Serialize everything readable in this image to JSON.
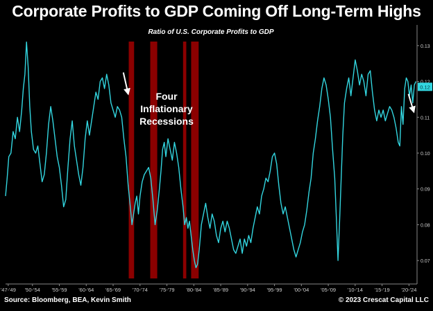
{
  "title": "Corporate Profits to GDP Coming Off Long-Term Highs",
  "footer": {
    "source": "Source: Bloomberg, BEA, Kevin Smith",
    "copyright": "© 2023 Crescat Capital LLC"
  },
  "colors": {
    "background": "#000000",
    "line": "#33d6e0",
    "recession_band": "#8b0000",
    "last_value_tag": "#33d6e0",
    "arrow": "#ffffff"
  },
  "chart_data": {
    "type": "line",
    "subtitle": "Ratio of U.S. Corporate Profits to GDP",
    "annotation": [
      "Four",
      "Inflationary",
      "Recessions"
    ],
    "last_value_label": "0.12",
    "y_ticks": [
      "0.07",
      "0.08",
      "0.09",
      "0.10",
      "0.11",
      "0.12",
      "0.13"
    ],
    "ylim": [
      0.065,
      0.135
    ],
    "x_range": [
      1947,
      2023.5
    ],
    "x_ticks": [
      {
        "label": "'47-'49",
        "year": 1947.5
      },
      {
        "label": "'50-'54",
        "year": 1952
      },
      {
        "label": "'55-'59",
        "year": 1957
      },
      {
        "label": "'60-'64",
        "year": 1962
      },
      {
        "label": "'65-'69",
        "year": 1967
      },
      {
        "label": "'70-'74",
        "year": 1972
      },
      {
        "label": "'75-'79",
        "year": 1977
      },
      {
        "label": "'80-'84",
        "year": 1982
      },
      {
        "label": "'85-'89",
        "year": 1987
      },
      {
        "label": "'90-'94",
        "year": 1992
      },
      {
        "label": "'95-'99",
        "year": 1997
      },
      {
        "label": "'00-'04",
        "year": 2002
      },
      {
        "label": "'05-'09",
        "year": 2007
      },
      {
        "label": "'10-'14",
        "year": 2012
      },
      {
        "label": "'15-'19",
        "year": 2017
      },
      {
        "label": "'20-'24",
        "year": 2022
      }
    ],
    "recessions": [
      {
        "start": 1969.9,
        "end": 1970.9
      },
      {
        "start": 1973.9,
        "end": 1975.2
      },
      {
        "start": 1980.0,
        "end": 1980.6
      },
      {
        "start": 1981.5,
        "end": 1982.9
      }
    ],
    "arrows": [
      {
        "from": [
          1968.9,
          0.1225
        ],
        "to": [
          1969.8,
          0.1165
        ]
      },
      {
        "from": [
          2021.9,
          0.1165
        ],
        "to": [
          2022.9,
          0.1115
        ]
      }
    ],
    "series": [
      {
        "values": [
          [
            1947.0,
            0.088
          ],
          [
            1947.3,
            0.093
          ],
          [
            1947.6,
            0.099
          ],
          [
            1948.0,
            0.1
          ],
          [
            1948.4,
            0.106
          ],
          [
            1948.8,
            0.104
          ],
          [
            1949.2,
            0.11
          ],
          [
            1949.6,
            0.106
          ],
          [
            1950.0,
            0.112
          ],
          [
            1950.3,
            0.118
          ],
          [
            1950.6,
            0.122
          ],
          [
            1950.9,
            0.131
          ],
          [
            1951.2,
            0.124
          ],
          [
            1951.5,
            0.113
          ],
          [
            1951.8,
            0.106
          ],
          [
            1952.2,
            0.101
          ],
          [
            1952.6,
            0.1
          ],
          [
            1953.0,
            0.102
          ],
          [
            1953.4,
            0.097
          ],
          [
            1953.8,
            0.092
          ],
          [
            1954.2,
            0.094
          ],
          [
            1954.6,
            0.1
          ],
          [
            1955.0,
            0.108
          ],
          [
            1955.4,
            0.113
          ],
          [
            1955.8,
            0.109
          ],
          [
            1956.2,
            0.104
          ],
          [
            1956.6,
            0.099
          ],
          [
            1957.0,
            0.096
          ],
          [
            1957.4,
            0.091
          ],
          [
            1957.8,
            0.085
          ],
          [
            1958.2,
            0.087
          ],
          [
            1958.6,
            0.096
          ],
          [
            1959.0,
            0.104
          ],
          [
            1959.4,
            0.109
          ],
          [
            1959.8,
            0.102
          ],
          [
            1960.2,
            0.098
          ],
          [
            1960.6,
            0.094
          ],
          [
            1961.0,
            0.091
          ],
          [
            1961.4,
            0.096
          ],
          [
            1961.8,
            0.104
          ],
          [
            1962.2,
            0.109
          ],
          [
            1962.6,
            0.105
          ],
          [
            1963.0,
            0.109
          ],
          [
            1963.4,
            0.113
          ],
          [
            1963.8,
            0.117
          ],
          [
            1964.2,
            0.115
          ],
          [
            1964.6,
            0.12
          ],
          [
            1965.0,
            0.121
          ],
          [
            1965.4,
            0.118
          ],
          [
            1965.8,
            0.122
          ],
          [
            1966.2,
            0.119
          ],
          [
            1966.6,
            0.114
          ],
          [
            1967.0,
            0.112
          ],
          [
            1967.4,
            0.11
          ],
          [
            1967.8,
            0.113
          ],
          [
            1968.2,
            0.112
          ],
          [
            1968.6,
            0.11
          ],
          [
            1969.0,
            0.104
          ],
          [
            1969.4,
            0.099
          ],
          [
            1969.8,
            0.091
          ],
          [
            1970.2,
            0.085
          ],
          [
            1970.5,
            0.08
          ],
          [
            1970.8,
            0.083
          ],
          [
            1971.1,
            0.086
          ],
          [
            1971.4,
            0.088
          ],
          [
            1971.7,
            0.083
          ],
          [
            1972.0,
            0.088
          ],
          [
            1972.4,
            0.092
          ],
          [
            1972.8,
            0.094
          ],
          [
            1973.2,
            0.095
          ],
          [
            1973.6,
            0.096
          ],
          [
            1974.0,
            0.093
          ],
          [
            1974.4,
            0.087
          ],
          [
            1974.8,
            0.08
          ],
          [
            1975.2,
            0.084
          ],
          [
            1975.6,
            0.09
          ],
          [
            1975.9,
            0.095
          ],
          [
            1976.2,
            0.101
          ],
          [
            1976.5,
            0.103
          ],
          [
            1976.8,
            0.099
          ],
          [
            1977.2,
            0.104
          ],
          [
            1977.6,
            0.101
          ],
          [
            1978.0,
            0.098
          ],
          [
            1978.4,
            0.103
          ],
          [
            1978.8,
            0.1
          ],
          [
            1979.2,
            0.096
          ],
          [
            1979.6,
            0.09
          ],
          [
            1980.0,
            0.085
          ],
          [
            1980.3,
            0.08
          ],
          [
            1980.6,
            0.082
          ],
          [
            1980.9,
            0.079
          ],
          [
            1981.2,
            0.081
          ],
          [
            1981.5,
            0.077
          ],
          [
            1981.8,
            0.073
          ],
          [
            1982.1,
            0.07
          ],
          [
            1982.4,
            0.068
          ],
          [
            1982.7,
            0.069
          ],
          [
            1983.0,
            0.073
          ],
          [
            1983.4,
            0.08
          ],
          [
            1983.8,
            0.083
          ],
          [
            1984.2,
            0.086
          ],
          [
            1984.6,
            0.082
          ],
          [
            1985.0,
            0.079
          ],
          [
            1985.4,
            0.083
          ],
          [
            1985.8,
            0.081
          ],
          [
            1986.2,
            0.077
          ],
          [
            1986.6,
            0.075
          ],
          [
            1987.0,
            0.079
          ],
          [
            1987.4,
            0.081
          ],
          [
            1987.8,
            0.078
          ],
          [
            1988.2,
            0.081
          ],
          [
            1988.6,
            0.079
          ],
          [
            1989.0,
            0.076
          ],
          [
            1989.4,
            0.073
          ],
          [
            1989.8,
            0.072
          ],
          [
            1990.2,
            0.074
          ],
          [
            1990.6,
            0.076
          ],
          [
            1991.0,
            0.072
          ],
          [
            1991.4,
            0.076
          ],
          [
            1991.8,
            0.074
          ],
          [
            1992.2,
            0.077
          ],
          [
            1992.6,
            0.075
          ],
          [
            1993.0,
            0.079
          ],
          [
            1993.4,
            0.082
          ],
          [
            1993.8,
            0.085
          ],
          [
            1994.2,
            0.083
          ],
          [
            1994.6,
            0.088
          ],
          [
            1995.0,
            0.09
          ],
          [
            1995.4,
            0.093
          ],
          [
            1995.8,
            0.092
          ],
          [
            1996.2,
            0.095
          ],
          [
            1996.6,
            0.099
          ],
          [
            1997.0,
            0.1
          ],
          [
            1997.4,
            0.097
          ],
          [
            1997.8,
            0.091
          ],
          [
            1998.2,
            0.086
          ],
          [
            1998.6,
            0.083
          ],
          [
            1999.0,
            0.085
          ],
          [
            1999.4,
            0.082
          ],
          [
            1999.8,
            0.079
          ],
          [
            2000.2,
            0.076
          ],
          [
            2000.6,
            0.073
          ],
          [
            2001.0,
            0.071
          ],
          [
            2001.4,
            0.073
          ],
          [
            2001.8,
            0.075
          ],
          [
            2002.2,
            0.078
          ],
          [
            2002.6,
            0.08
          ],
          [
            2003.0,
            0.084
          ],
          [
            2003.4,
            0.089
          ],
          [
            2003.8,
            0.093
          ],
          [
            2004.2,
            0.1
          ],
          [
            2004.6,
            0.104
          ],
          [
            2005.0,
            0.109
          ],
          [
            2005.4,
            0.113
          ],
          [
            2005.8,
            0.118
          ],
          [
            2006.2,
            0.121
          ],
          [
            2006.6,
            0.119
          ],
          [
            2007.0,
            0.115
          ],
          [
            2007.4,
            0.11
          ],
          [
            2007.8,
            0.101
          ],
          [
            2008.2,
            0.093
          ],
          [
            2008.5,
            0.082
          ],
          [
            2008.8,
            0.07
          ],
          [
            2009.1,
            0.081
          ],
          [
            2009.4,
            0.093
          ],
          [
            2009.7,
            0.105
          ],
          [
            2010.0,
            0.114
          ],
          [
            2010.4,
            0.118
          ],
          [
            2010.8,
            0.121
          ],
          [
            2011.2,
            0.116
          ],
          [
            2011.6,
            0.121
          ],
          [
            2012.0,
            0.126
          ],
          [
            2012.4,
            0.123
          ],
          [
            2012.8,
            0.119
          ],
          [
            2013.2,
            0.122
          ],
          [
            2013.6,
            0.12
          ],
          [
            2014.0,
            0.116
          ],
          [
            2014.4,
            0.122
          ],
          [
            2014.8,
            0.123
          ],
          [
            2015.2,
            0.117
          ],
          [
            2015.6,
            0.112
          ],
          [
            2016.0,
            0.109
          ],
          [
            2016.4,
            0.112
          ],
          [
            2016.8,
            0.11
          ],
          [
            2017.2,
            0.112
          ],
          [
            2017.6,
            0.109
          ],
          [
            2018.0,
            0.111
          ],
          [
            2018.4,
            0.113
          ],
          [
            2018.8,
            0.112
          ],
          [
            2019.2,
            0.11
          ],
          [
            2019.6,
            0.107
          ],
          [
            2020.0,
            0.103
          ],
          [
            2020.3,
            0.102
          ],
          [
            2020.6,
            0.113
          ],
          [
            2020.9,
            0.108
          ],
          [
            2021.2,
            0.118
          ],
          [
            2021.5,
            0.121
          ],
          [
            2021.8,
            0.12
          ],
          [
            2022.1,
            0.116
          ],
          [
            2022.4,
            0.119
          ],
          [
            2022.7,
            0.114
          ],
          [
            2023.0,
            0.119
          ],
          [
            2023.3,
            0.12
          ]
        ]
      }
    ]
  }
}
